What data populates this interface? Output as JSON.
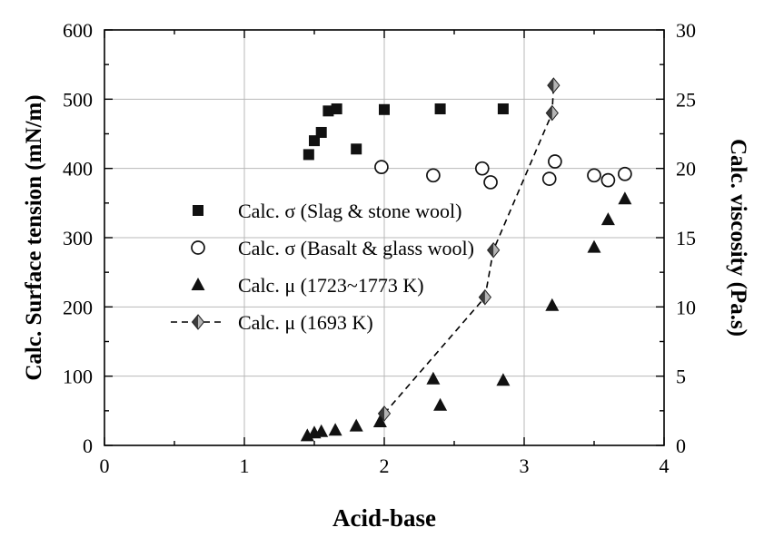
{
  "chart_data": {
    "type": "scatter",
    "title": "",
    "xlabel": "Acid-base",
    "ylabel_left": "Calc. Surface tension (mN/m)",
    "ylabel_right": "Calc. viscosity (Pa.s)",
    "xlim": [
      0,
      4
    ],
    "ylim_left": [
      0,
      600
    ],
    "ylim_right": [
      0,
      30
    ],
    "xticks": [
      0,
      1,
      2,
      3,
      4
    ],
    "yticks_left": [
      0,
      100,
      200,
      300,
      400,
      500,
      600
    ],
    "yticks_right": [
      0,
      5,
      10,
      15,
      20,
      25,
      30
    ],
    "grid": true,
    "legend_position": "center-left",
    "colors": {
      "marker": "#111111",
      "grid": "#b8b8b8",
      "diamond_dark": "#3d3d3d",
      "diamond_light": "#b5b5b5"
    },
    "series": [
      {
        "name": "Calc. σ (Slag & stone wool)",
        "marker": "square-filled",
        "axis": "left",
        "line": "none",
        "points": [
          [
            1.46,
            420
          ],
          [
            1.5,
            440
          ],
          [
            1.55,
            452
          ],
          [
            1.6,
            483
          ],
          [
            1.66,
            486
          ],
          [
            1.8,
            428
          ],
          [
            2.0,
            485
          ],
          [
            2.4,
            486
          ],
          [
            2.85,
            486
          ]
        ]
      },
      {
        "name": "Calc. σ (Basalt & glass wool)",
        "marker": "circle-open",
        "axis": "left",
        "line": "none",
        "points": [
          [
            1.98,
            402
          ],
          [
            2.35,
            390
          ],
          [
            2.7,
            400
          ],
          [
            2.76,
            380
          ],
          [
            3.18,
            385
          ],
          [
            3.22,
            410
          ],
          [
            3.5,
            390
          ],
          [
            3.6,
            383
          ],
          [
            3.72,
            392
          ]
        ]
      },
      {
        "name": "Calc. μ (1723~1773 K)",
        "marker": "triangle-filled",
        "axis": "right",
        "line": "none",
        "points": [
          [
            1.45,
            0.7
          ],
          [
            1.5,
            0.9
          ],
          [
            1.55,
            1.0
          ],
          [
            1.65,
            1.1
          ],
          [
            1.8,
            1.4
          ],
          [
            1.97,
            1.7
          ],
          [
            2.35,
            4.8
          ],
          [
            2.4,
            2.9
          ],
          [
            2.85,
            4.7
          ],
          [
            3.2,
            10.1
          ],
          [
            3.5,
            14.3
          ],
          [
            3.6,
            16.3
          ],
          [
            3.72,
            17.8
          ]
        ]
      },
      {
        "name": "Calc. μ (1693 K)",
        "marker": "diamond-half",
        "axis": "right",
        "line": "dashed",
        "points": [
          [
            2.0,
            2.3
          ],
          [
            2.72,
            10.7
          ],
          [
            2.78,
            14.1
          ],
          [
            3.2,
            24.0
          ],
          [
            3.21,
            26.0
          ]
        ]
      }
    ]
  }
}
